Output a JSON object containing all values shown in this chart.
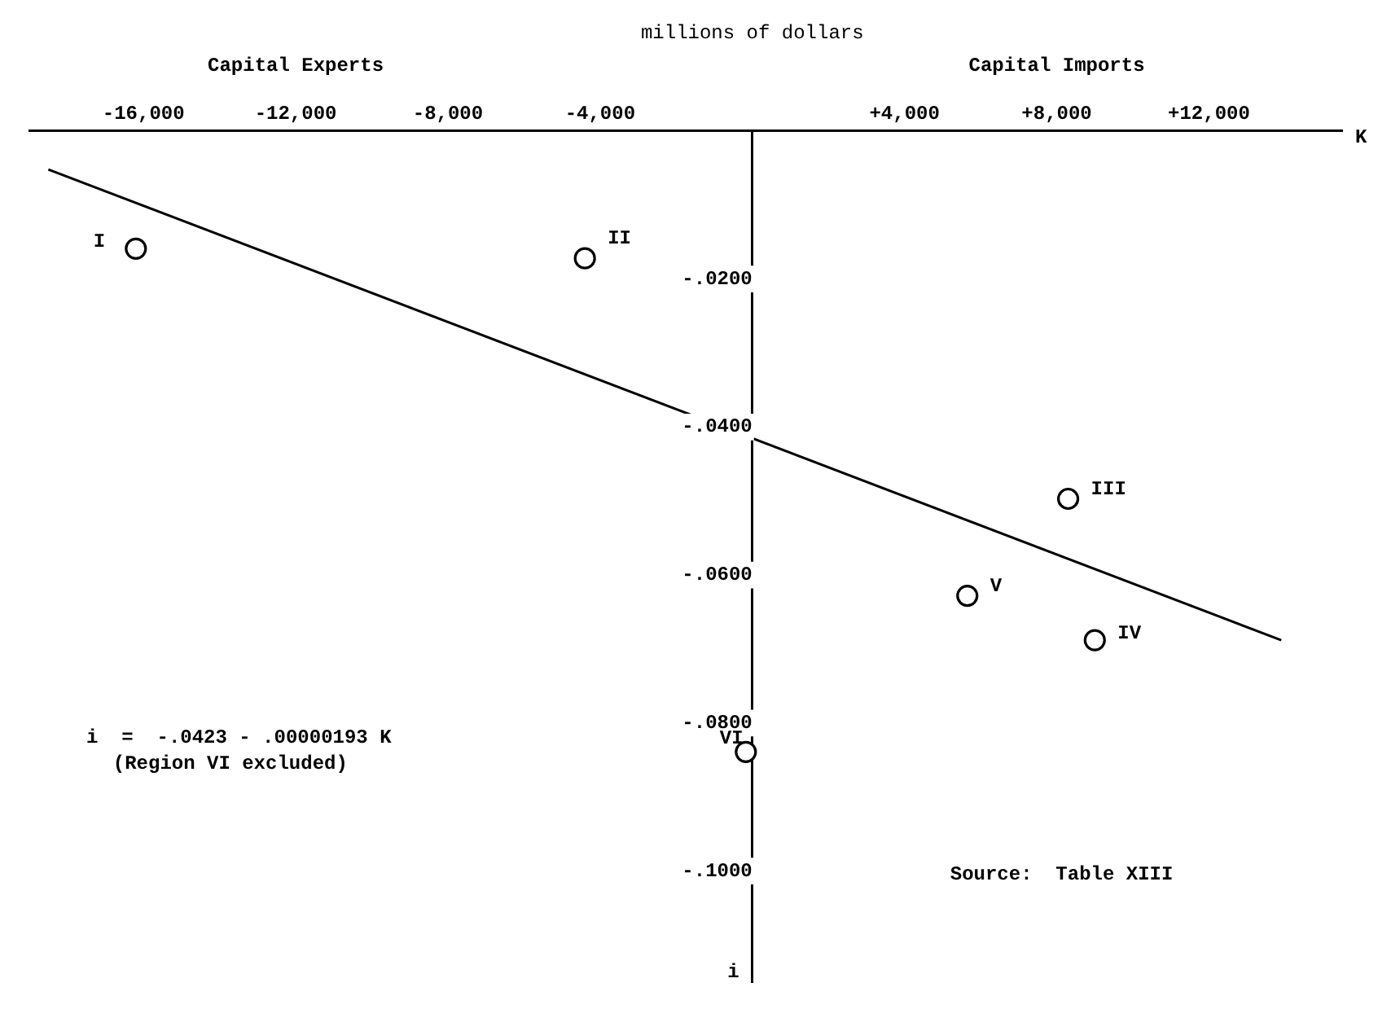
{
  "chart_data": {
    "type": "scatter",
    "title": "millions of dollars",
    "xlabel": "K",
    "ylabel": "i",
    "annotations": [
      "Capital Experts",
      "Capital Imports",
      "i  =  -.0423 - .00000193 K",
      "(Region VI excluded)",
      "Source:  Table XIII"
    ],
    "xlim": [
      -19000,
      15500
    ],
    "ylim": [
      -0.115,
      0
    ],
    "xticks": [
      {
        "value": -16000,
        "label": "-16,000"
      },
      {
        "value": -12000,
        "label": "-12,000"
      },
      {
        "value": -8000,
        "label": "-8,000"
      },
      {
        "value": -4000,
        "label": "-4,000"
      },
      {
        "value": 4000,
        "label": "+4,000"
      },
      {
        "value": 8000,
        "label": "+8,000"
      },
      {
        "value": 12000,
        "label": "+12,000"
      }
    ],
    "yticks": [
      {
        "value": -0.02,
        "label": "-.0200"
      },
      {
        "value": -0.04,
        "label": "-.0400"
      },
      {
        "value": -0.06,
        "label": "-.0600"
      },
      {
        "value": -0.08,
        "label": "-.0800"
      },
      {
        "value": -0.1,
        "label": "-.1000"
      }
    ],
    "grid": false,
    "legend": false,
    "marker": "circle",
    "series": [
      {
        "name": "I",
        "color": "#000000",
        "x": [
          -16200
        ],
        "values": [
          -0.0159
        ]
      },
      {
        "name": "II",
        "color": "#000000",
        "x": [
          -4400
        ],
        "values": [
          -0.0172
        ]
      },
      {
        "name": "III",
        "color": "#000000",
        "x": [
          8300
        ],
        "values": [
          -0.0497
        ]
      },
      {
        "name": "IV",
        "color": "#000000",
        "x": [
          9000
        ],
        "values": [
          -0.0688
        ]
      },
      {
        "name": "V",
        "color": "#000000",
        "x": [
          5650
        ],
        "values": [
          -0.0628
        ]
      },
      {
        "name": "VI",
        "color": "#000000",
        "x": [
          -170
        ],
        "values": [
          -0.0839
        ]
      },
      {
        "type": "line",
        "color": "#000000",
        "x": [
          -18500,
          13900
        ],
        "values": [
          -0.0052,
          -0.0688
        ],
        "marker": "none",
        "line_style": "solid"
      }
    ]
  }
}
